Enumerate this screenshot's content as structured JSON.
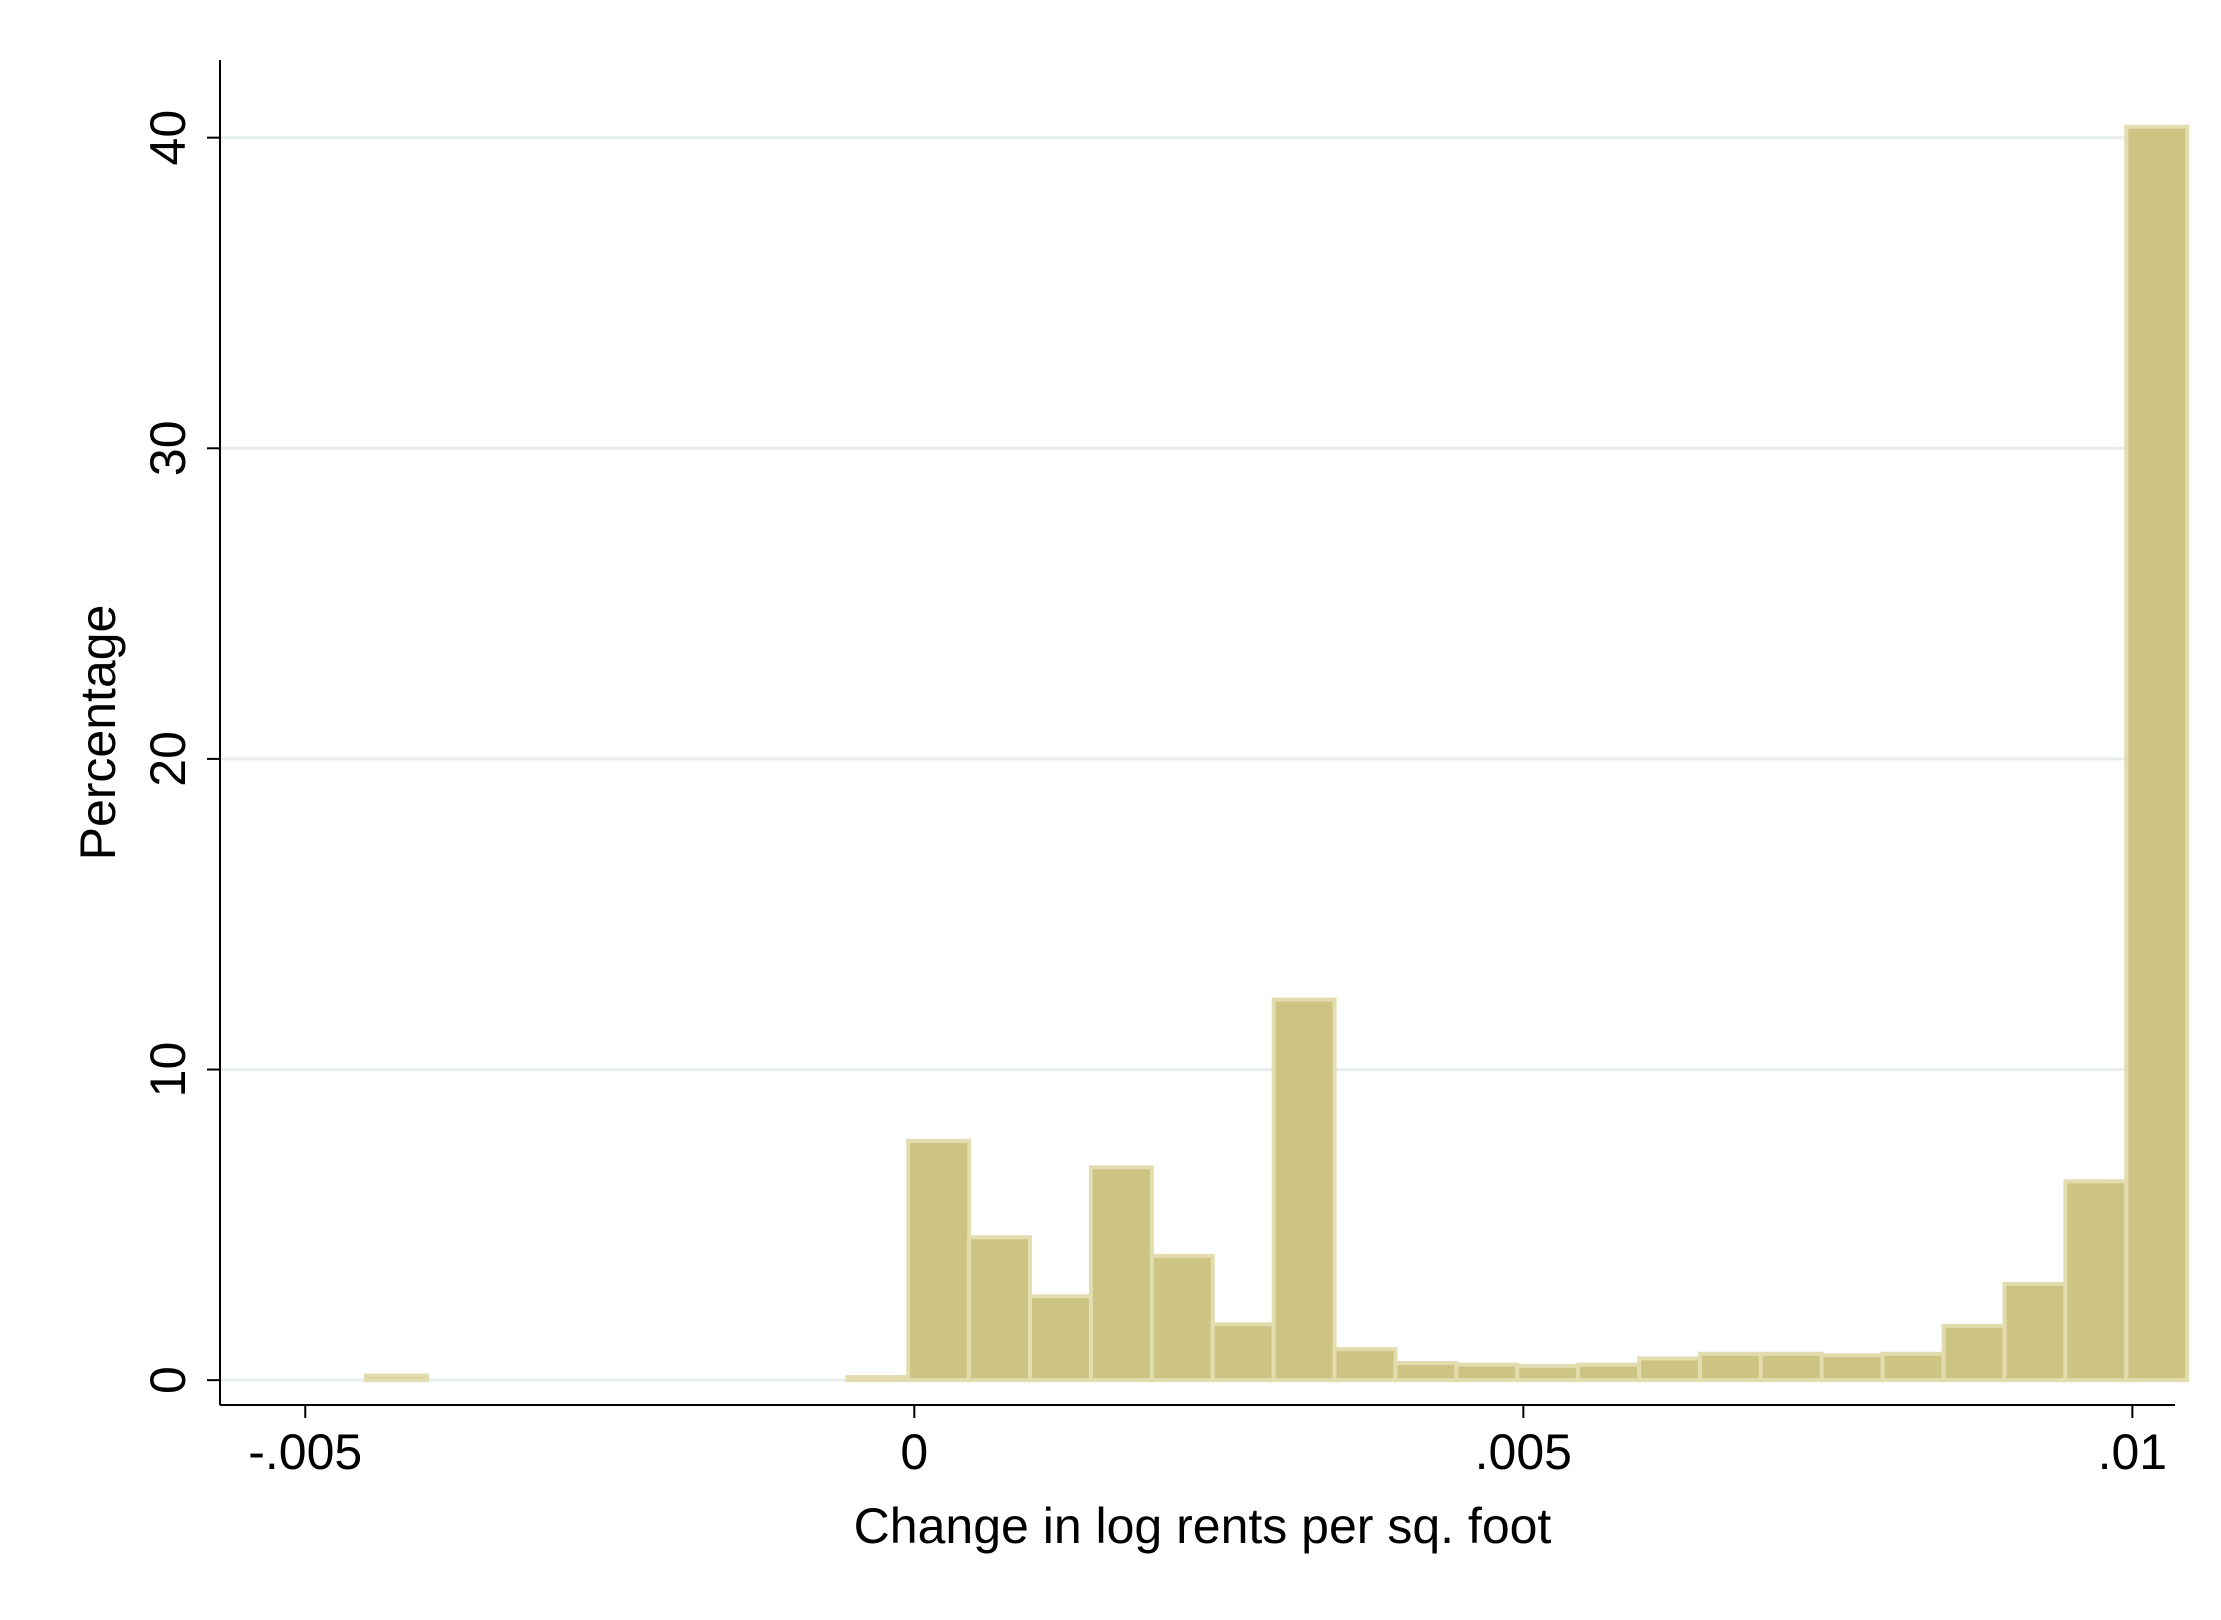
{
  "chart_data": {
    "type": "bar",
    "title": "",
    "xlabel": "Change in log rents per sq. foot",
    "ylabel": "Percentage",
    "xlim": [
      -0.0057,
      0.01035
    ],
    "ylim": [
      -0.8,
      42.5
    ],
    "x_ticks": [
      {
        "value": -0.005,
        "label": "-.005"
      },
      {
        "value": 0,
        "label": "0"
      },
      {
        "value": 0.005,
        "label": ".005"
      },
      {
        "value": 0.01,
        "label": ".01"
      }
    ],
    "y_ticks": [
      {
        "value": 0,
        "label": "0"
      },
      {
        "value": 10,
        "label": "10"
      },
      {
        "value": 20,
        "label": "20"
      },
      {
        "value": 30,
        "label": "30"
      },
      {
        "value": 40,
        "label": "40"
      }
    ],
    "grid": true,
    "bar_color": "#cdc383",
    "bar_edge_color": "#e3dcae",
    "grid_color": "#e8eeee",
    "bin_width": 0.0005,
    "bins": [
      {
        "x": -0.0045,
        "value": 0.15
      },
      {
        "x": -0.00055,
        "value": 0.1
      },
      {
        "x": -5e-05,
        "value": 7.7
      },
      {
        "x": 0.00045,
        "value": 4.6
      },
      {
        "x": 0.00095,
        "value": 2.7
      },
      {
        "x": 0.00145,
        "value": 6.85
      },
      {
        "x": 0.00195,
        "value": 4.0
      },
      {
        "x": 0.00245,
        "value": 1.8
      },
      {
        "x": 0.00295,
        "value": 12.25
      },
      {
        "x": 0.00345,
        "value": 1.0
      },
      {
        "x": 0.00395,
        "value": 0.55
      },
      {
        "x": 0.00445,
        "value": 0.5
      },
      {
        "x": 0.00495,
        "value": 0.45
      },
      {
        "x": 0.00545,
        "value": 0.5
      },
      {
        "x": 0.00595,
        "value": 0.7
      },
      {
        "x": 0.00645,
        "value": 0.85
      },
      {
        "x": 0.00695,
        "value": 0.85
      },
      {
        "x": 0.00745,
        "value": 0.8
      },
      {
        "x": 0.00795,
        "value": 0.85
      },
      {
        "x": 0.00845,
        "value": 1.75
      },
      {
        "x": 0.00895,
        "value": 3.1
      },
      {
        "x": 0.00945,
        "value": 6.4
      },
      {
        "x": 0.00995,
        "value": 40.35
      }
    ]
  }
}
